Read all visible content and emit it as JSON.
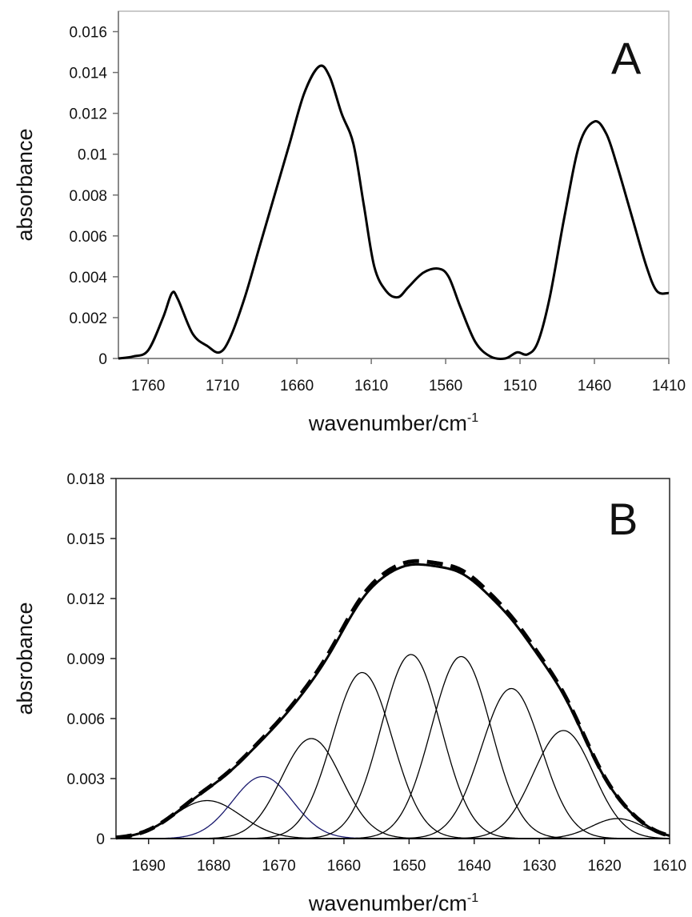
{
  "chart_data": [
    {
      "type": "line",
      "panel_label": "A",
      "xlabel": "wavenumber/cm",
      "xlabel_sup": "-1",
      "ylabel": "absorbance",
      "xlim": [
        1780,
        1410
      ],
      "ylim": [
        0,
        0.017
      ],
      "x_reversed": true,
      "xticks": [
        1760,
        1710,
        1660,
        1610,
        1560,
        1510,
        1460,
        1410
      ],
      "xtick_labels": [
        "1760",
        "1710",
        "1660",
        "1610",
        "1560",
        "1510",
        "1460",
        "1410"
      ],
      "yticks": [
        0,
        0.002,
        0.004,
        0.006,
        0.008,
        0.01,
        0.012,
        0.014,
        0.016
      ],
      "ytick_labels": [
        "0",
        "0.002",
        "0.004",
        "0.006",
        "0.008",
        "0.01",
        "0.012",
        "0.014",
        "0.016"
      ],
      "grid": false,
      "series": [
        {
          "style": "solid-thick",
          "color": "#000000",
          "points": [
            [
              1780,
              0.0
            ],
            [
              1770,
              0.0001
            ],
            [
              1760,
              0.0004
            ],
            [
              1750,
              0.002
            ],
            [
              1744,
              0.0032
            ],
            [
              1740,
              0.0029
            ],
            [
              1730,
              0.0012
            ],
            [
              1720,
              0.0006
            ],
            [
              1712,
              0.0003
            ],
            [
              1705,
              0.001
            ],
            [
              1695,
              0.003
            ],
            [
              1685,
              0.0055
            ],
            [
              1675,
              0.008
            ],
            [
              1665,
              0.0105
            ],
            [
              1655,
              0.013
            ],
            [
              1645,
              0.0143
            ],
            [
              1638,
              0.0138
            ],
            [
              1630,
              0.012
            ],
            [
              1622,
              0.0105
            ],
            [
              1615,
              0.0075
            ],
            [
              1608,
              0.0045
            ],
            [
              1600,
              0.0033
            ],
            [
              1592,
              0.003
            ],
            [
              1585,
              0.0035
            ],
            [
              1575,
              0.0042
            ],
            [
              1565,
              0.0044
            ],
            [
              1558,
              0.004
            ],
            [
              1550,
              0.0025
            ],
            [
              1540,
              0.0008
            ],
            [
              1530,
              0.0001
            ],
            [
              1520,
              0.0
            ],
            [
              1512,
              0.0003
            ],
            [
              1505,
              0.0002
            ],
            [
              1498,
              0.0008
            ],
            [
              1490,
              0.003
            ],
            [
              1480,
              0.007
            ],
            [
              1470,
              0.0105
            ],
            [
              1460,
              0.0116
            ],
            [
              1452,
              0.011
            ],
            [
              1445,
              0.0095
            ],
            [
              1435,
              0.007
            ],
            [
              1425,
              0.0045
            ],
            [
              1418,
              0.0033
            ],
            [
              1410,
              0.0032
            ]
          ]
        }
      ]
    },
    {
      "type": "line",
      "panel_label": "B",
      "xlabel": "wavenumber/cm",
      "xlabel_sup": "-1",
      "ylabel": "absrobance",
      "xlim": [
        1695,
        1610
      ],
      "ylim": [
        0,
        0.018
      ],
      "x_reversed": true,
      "xticks": [
        1690,
        1680,
        1670,
        1660,
        1650,
        1640,
        1630,
        1620,
        1610
      ],
      "xtick_labels": [
        "1690",
        "1680",
        "1670",
        "1660",
        "1650",
        "1640",
        "1630",
        "1620",
        "1610"
      ],
      "yticks": [
        0,
        0.003,
        0.006,
        0.009,
        0.012,
        0.015,
        0.018
      ],
      "ytick_labels": [
        "0",
        "0.003",
        "0.006",
        "0.009",
        "0.012",
        "0.015",
        "0.018"
      ],
      "grid": false,
      "component_bands": [
        {
          "center": 1681,
          "amplitude": 0.0019,
          "sigma": 5.2,
          "color": "#000000"
        },
        {
          "center": 1672.5,
          "amplitude": 0.0031,
          "sigma": 4.6,
          "color": "#1a1a6e"
        },
        {
          "center": 1665,
          "amplitude": 0.005,
          "sigma": 4.6,
          "color": "#000000"
        },
        {
          "center": 1657.2,
          "amplitude": 0.0083,
          "sigma": 4.6,
          "color": "#000000"
        },
        {
          "center": 1649.7,
          "amplitude": 0.0092,
          "sigma": 4.6,
          "color": "#000000"
        },
        {
          "center": 1642,
          "amplitude": 0.0091,
          "sigma": 4.6,
          "color": "#000000"
        },
        {
          "center": 1634.3,
          "amplitude": 0.0075,
          "sigma": 4.6,
          "color": "#000000"
        },
        {
          "center": 1626.3,
          "amplitude": 0.0054,
          "sigma": 4.6,
          "color": "#000000"
        },
        {
          "center": 1618,
          "amplitude": 0.001,
          "sigma": 4.0,
          "color": "#000000"
        }
      ],
      "sum_curve": {
        "style": "solid-thick",
        "color": "#000000"
      },
      "measured_curve": {
        "style": "dashed-thick",
        "color": "#000000",
        "scale": 1.012
      }
    }
  ]
}
